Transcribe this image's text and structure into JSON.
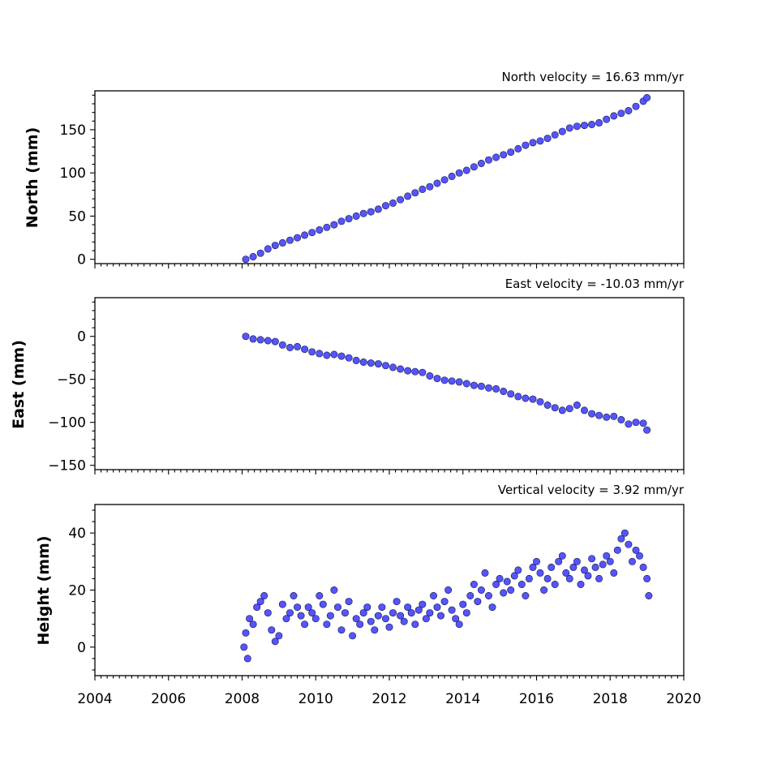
{
  "chart_data": [
    {
      "type": "scatter",
      "subtitle": "North velocity = 16.63 mm/yr",
      "ylabel": "North (mm)",
      "xlim": [
        2004,
        2020
      ],
      "ylim": [
        -5,
        195
      ],
      "yticks": [
        0,
        50,
        100,
        150
      ],
      "ytick_labels": [
        "0",
        "50",
        "100",
        "150"
      ],
      "xticks": [
        2004,
        2006,
        2008,
        2010,
        2012,
        2014,
        2016,
        2018,
        2020
      ],
      "xtick_labels": [],
      "grid": false,
      "series": [
        {
          "color": "#5555ff",
          "x": [
            2008.1,
            2008.3,
            2008.5,
            2008.7,
            2008.9,
            2009.1,
            2009.3,
            2009.5,
            2009.7,
            2009.9,
            2010.1,
            2010.3,
            2010.5,
            2010.7,
            2010.9,
            2011.1,
            2011.3,
            2011.5,
            2011.7,
            2011.9,
            2012.1,
            2012.3,
            2012.5,
            2012.7,
            2012.9,
            2013.1,
            2013.3,
            2013.5,
            2013.7,
            2013.9,
            2014.1,
            2014.3,
            2014.5,
            2014.7,
            2014.9,
            2015.1,
            2015.3,
            2015.5,
            2015.7,
            2015.9,
            2016.1,
            2016.3,
            2016.5,
            2016.7,
            2016.9,
            2017.1,
            2017.3,
            2017.5,
            2017.7,
            2017.9,
            2018.1,
            2018.3,
            2018.5,
            2018.7,
            2018.9,
            2019.0
          ],
          "y": [
            0,
            3,
            7,
            12,
            16,
            19,
            22,
            25,
            28,
            31,
            34,
            37,
            40,
            44,
            47,
            50,
            53,
            55,
            58,
            62,
            65,
            69,
            73,
            77,
            81,
            84,
            88,
            92,
            96,
            100,
            103,
            107,
            111,
            115,
            118,
            121,
            124,
            128,
            132,
            135,
            137,
            140,
            144,
            148,
            152,
            154,
            155,
            156,
            158,
            162,
            166,
            169,
            172,
            177,
            183,
            187
          ]
        }
      ]
    },
    {
      "type": "scatter",
      "subtitle": "East velocity = -10.03 mm/yr",
      "ylabel": "East (mm)",
      "xlim": [
        2004,
        2020
      ],
      "ylim": [
        -155,
        45
      ],
      "yticks": [
        -150,
        -100,
        -50,
        0
      ],
      "ytick_labels": [
        "−150",
        "−100",
        "−50",
        "0"
      ],
      "xticks": [
        2004,
        2006,
        2008,
        2010,
        2012,
        2014,
        2016,
        2018,
        2020
      ],
      "xtick_labels": [],
      "grid": false,
      "series": [
        {
          "color": "#5555ff",
          "x": [
            2008.1,
            2008.3,
            2008.5,
            2008.7,
            2008.9,
            2009.1,
            2009.3,
            2009.5,
            2009.7,
            2009.9,
            2010.1,
            2010.3,
            2010.5,
            2010.7,
            2010.9,
            2011.1,
            2011.3,
            2011.5,
            2011.7,
            2011.9,
            2012.1,
            2012.3,
            2012.5,
            2012.7,
            2012.9,
            2013.1,
            2013.3,
            2013.5,
            2013.7,
            2013.9,
            2014.1,
            2014.3,
            2014.5,
            2014.7,
            2014.9,
            2015.1,
            2015.3,
            2015.5,
            2015.7,
            2015.9,
            2016.1,
            2016.3,
            2016.5,
            2016.7,
            2016.9,
            2017.1,
            2017.3,
            2017.5,
            2017.7,
            2017.9,
            2018.1,
            2018.3,
            2018.5,
            2018.7,
            2018.9,
            2019.0
          ],
          "y": [
            0,
            -3,
            -4,
            -5,
            -6,
            -10,
            -13,
            -12,
            -15,
            -18,
            -20,
            -22,
            -21,
            -23,
            -25,
            -28,
            -30,
            -31,
            -32,
            -34,
            -36,
            -38,
            -40,
            -41,
            -42,
            -46,
            -49,
            -51,
            -52,
            -53,
            -55,
            -57,
            -58,
            -60,
            -61,
            -64,
            -67,
            -70,
            -72,
            -73,
            -76,
            -80,
            -83,
            -86,
            -84,
            -80,
            -86,
            -90,
            -92,
            -94,
            -93,
            -97,
            -102,
            -100,
            -101,
            -109
          ]
        }
      ]
    },
    {
      "type": "scatter",
      "subtitle": "Vertical velocity = 3.92 mm/yr",
      "ylabel": "Height (mm)",
      "xlabel": "",
      "xlim": [
        2004,
        2020
      ],
      "ylim": [
        -10,
        50
      ],
      "yticks": [
        0,
        20,
        40
      ],
      "ytick_labels": [
        "0",
        "20",
        "40"
      ],
      "xticks": [
        2004,
        2006,
        2008,
        2010,
        2012,
        2014,
        2016,
        2018,
        2020
      ],
      "xtick_labels": [
        "2004",
        "2006",
        "2008",
        "2010",
        "2012",
        "2014",
        "2016",
        "2018",
        "2020"
      ],
      "grid": false,
      "series": [
        {
          "color": "#5555ff",
          "x": [
            2008.05,
            2008.1,
            2008.15,
            2008.2,
            2008.3,
            2008.4,
            2008.5,
            2008.6,
            2008.7,
            2008.8,
            2008.9,
            2009.0,
            2009.1,
            2009.2,
            2009.3,
            2009.4,
            2009.5,
            2009.6,
            2009.7,
            2009.8,
            2009.9,
            2010.0,
            2010.1,
            2010.2,
            2010.3,
            2010.4,
            2010.5,
            2010.6,
            2010.7,
            2010.8,
            2010.9,
            2011.0,
            2011.1,
            2011.2,
            2011.3,
            2011.4,
            2011.5,
            2011.6,
            2011.7,
            2011.8,
            2011.9,
            2012.0,
            2012.1,
            2012.2,
            2012.3,
            2012.4,
            2012.5,
            2012.6,
            2012.7,
            2012.8,
            2012.9,
            2013.0,
            2013.1,
            2013.2,
            2013.3,
            2013.4,
            2013.5,
            2013.6,
            2013.7,
            2013.8,
            2013.9,
            2014.0,
            2014.1,
            2014.2,
            2014.3,
            2014.4,
            2014.5,
            2014.6,
            2014.7,
            2014.8,
            2014.9,
            2015.0,
            2015.1,
            2015.2,
            2015.3,
            2015.4,
            2015.5,
            2015.6,
            2015.7,
            2015.8,
            2015.9,
            2016.0,
            2016.1,
            2016.2,
            2016.3,
            2016.4,
            2016.5,
            2016.6,
            2016.7,
            2016.8,
            2016.9,
            2017.0,
            2017.1,
            2017.2,
            2017.3,
            2017.4,
            2017.5,
            2017.6,
            2017.7,
            2017.8,
            2017.9,
            2018.0,
            2018.1,
            2018.2,
            2018.3,
            2018.4,
            2018.5,
            2018.6,
            2018.7,
            2018.8,
            2018.9,
            2019.0,
            2019.05
          ],
          "y": [
            0,
            5,
            -4,
            10,
            8,
            14,
            16,
            18,
            12,
            6,
            2,
            4,
            15,
            10,
            12,
            18,
            14,
            11,
            8,
            14,
            12,
            10,
            18,
            15,
            8,
            11,
            20,
            14,
            6,
            12,
            16,
            4,
            10,
            8,
            12,
            14,
            9,
            6,
            11,
            14,
            10,
            7,
            12,
            16,
            11,
            9,
            14,
            12,
            8,
            13,
            15,
            10,
            12,
            18,
            14,
            11,
            16,
            20,
            13,
            10,
            8,
            15,
            12,
            18,
            22,
            16,
            20,
            26,
            18,
            14,
            22,
            24,
            19,
            23,
            20,
            25,
            27,
            22,
            18,
            24,
            28,
            30,
            26,
            20,
            24,
            28,
            22,
            30,
            32,
            26,
            24,
            28,
            30,
            22,
            27,
            25,
            31,
            28,
            24,
            29,
            32,
            30,
            26,
            34,
            38,
            40,
            36,
            30,
            34,
            32,
            28,
            24,
            18
          ]
        }
      ]
    }
  ]
}
